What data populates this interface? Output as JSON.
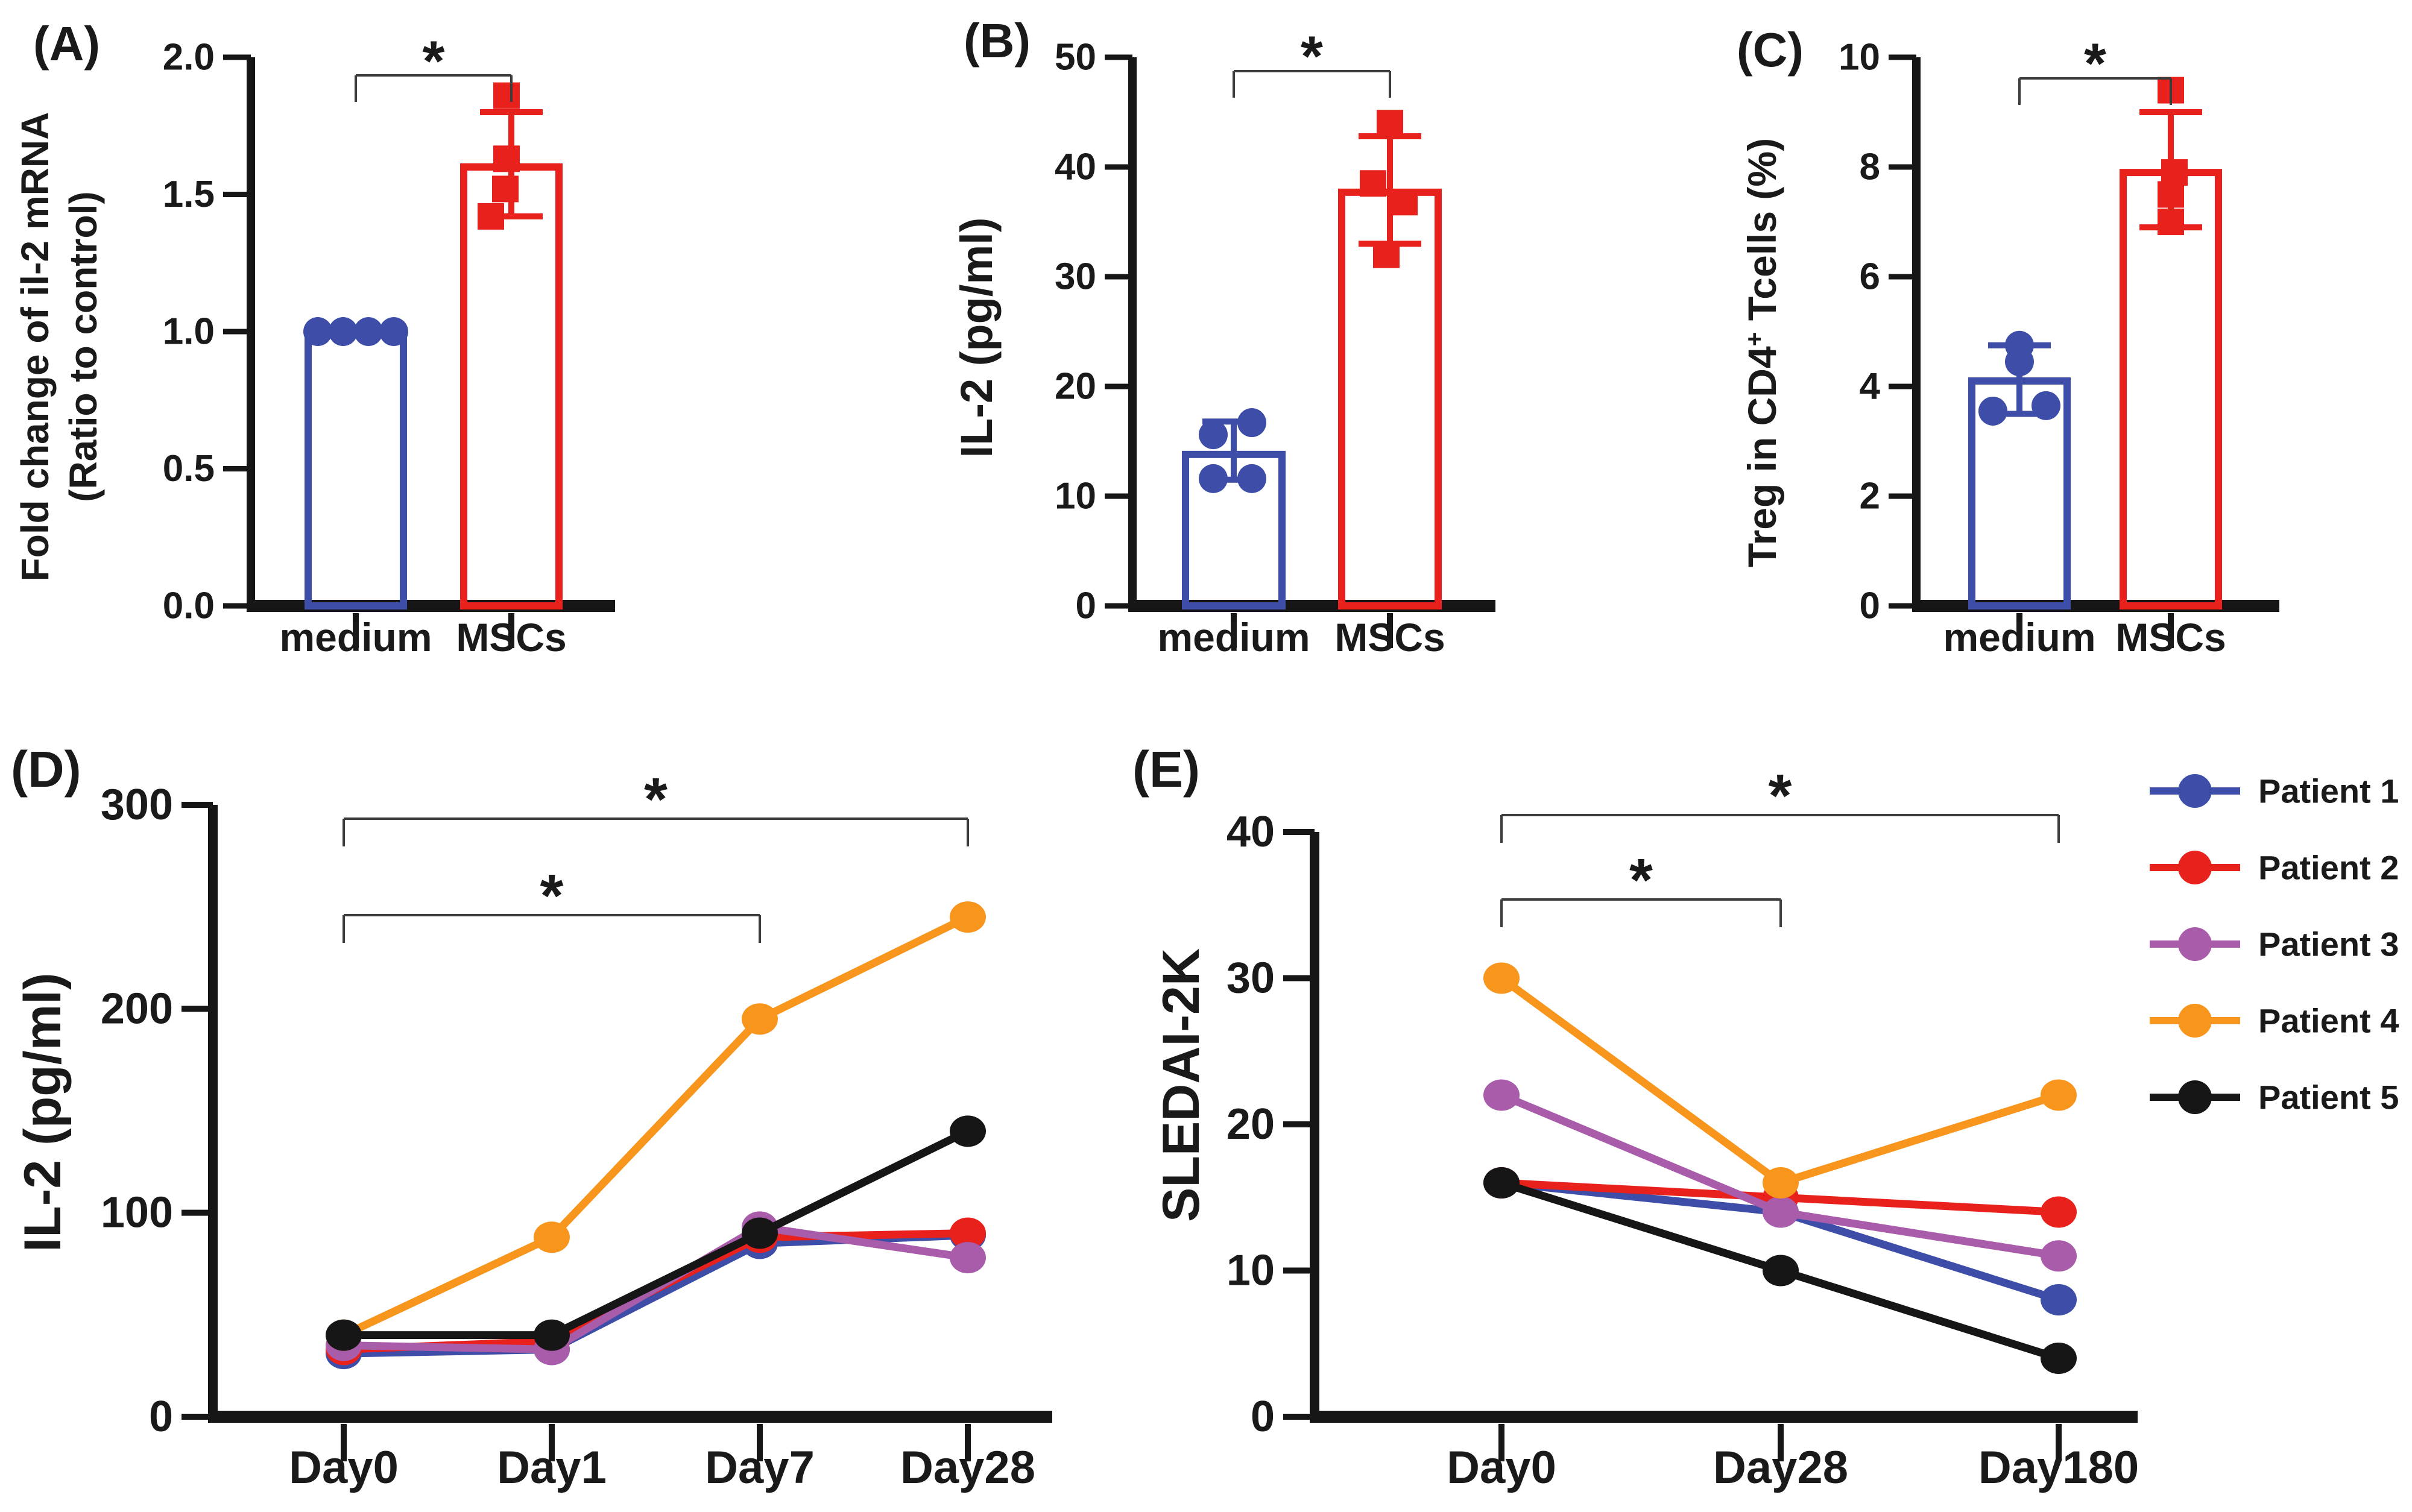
{
  "figure": {
    "background": "#ffffff"
  },
  "colors": {
    "blue": "#3D4DA8",
    "red": "#E8211D",
    "purple": "#A95CA9",
    "orange": "#F8951D",
    "black": "#161616",
    "bracket": "#3c3c3c",
    "text": "#1a1a1a"
  },
  "chart_data": [
    {
      "id": "A",
      "panel_label": "(A)",
      "type": "bar",
      "ylabel_lines": [
        "Fold change of il-2 mRNA",
        "(Ratio to control)"
      ],
      "ylim": [
        0,
        2
      ],
      "yticks": [
        {
          "v": 0,
          "t": "0.0"
        },
        {
          "v": 0.5,
          "t": "0.5"
        },
        {
          "v": 1.0,
          "t": "1.0"
        },
        {
          "v": 1.5,
          "t": "1.5"
        },
        {
          "v": 2.0,
          "t": "2.0"
        }
      ],
      "categories": [
        "medium",
        "MSCs"
      ],
      "groups": [
        {
          "category": "medium",
          "color_key": "blue",
          "marker": "circle",
          "mean": 1.0,
          "err": null,
          "points": [
            {
              "v": 1.0,
              "dx": -63
            },
            {
              "v": 1.0,
              "dx": -21
            },
            {
              "v": 1.0,
              "dx": 21
            },
            {
              "v": 1.0,
              "dx": 63
            }
          ]
        },
        {
          "category": "MSCs",
          "color_key": "red",
          "marker": "square",
          "mean": 1.6,
          "err": [
            1.42,
            1.8
          ],
          "points": [
            {
              "v": 1.86,
              "dx": -8
            },
            {
              "v": 1.63,
              "dx": -8
            },
            {
              "v": 1.52,
              "dx": -10
            },
            {
              "v": 1.42,
              "dx": -34
            }
          ]
        }
      ],
      "sig": {
        "label": "*"
      }
    },
    {
      "id": "B",
      "panel_label": "(B)",
      "type": "bar",
      "ylabel_lines": [
        "IL-2 (pg/ml)"
      ],
      "ylim": [
        0,
        50
      ],
      "yticks": [
        {
          "v": 0,
          "t": "0"
        },
        {
          "v": 10,
          "t": "10"
        },
        {
          "v": 20,
          "t": "20"
        },
        {
          "v": 30,
          "t": "30"
        },
        {
          "v": 40,
          "t": "40"
        },
        {
          "v": 50,
          "t": "50"
        }
      ],
      "categories": [
        "medium",
        "MSCs"
      ],
      "groups": [
        {
          "category": "medium",
          "color_key": "blue",
          "marker": "circle",
          "mean": 13.8,
          "err": [
            11.5,
            16.8
          ],
          "points": [
            {
              "v": 16.7,
              "dx": 30
            },
            {
              "v": 15.6,
              "dx": -34
            },
            {
              "v": 11.6,
              "dx": -34
            },
            {
              "v": 11.6,
              "dx": 30
            }
          ]
        },
        {
          "category": "MSCs",
          "color_key": "red",
          "marker": "square",
          "mean": 37.7,
          "err": [
            33.0,
            42.8
          ],
          "points": [
            {
              "v": 44.0,
              "dx": 0
            },
            {
              "v": 38.5,
              "dx": -28
            },
            {
              "v": 36.8,
              "dx": 24
            },
            {
              "v": 32.0,
              "dx": -6
            }
          ]
        }
      ],
      "sig": {
        "label": "*"
      }
    },
    {
      "id": "C",
      "panel_label": "(C)",
      "type": "bar",
      "ylabel_parts": [
        {
          "t": "Treg in CD4"
        },
        {
          "t": "+",
          "sup": true
        },
        {
          "t": " Tcells (%)"
        }
      ],
      "ylabel_lines": [
        "Treg in CD4+ Tcells (%)"
      ],
      "ylim": [
        0,
        10
      ],
      "yticks": [
        {
          "v": 0,
          "t": "0"
        },
        {
          "v": 2,
          "t": "2"
        },
        {
          "v": 4,
          "t": "4"
        },
        {
          "v": 6,
          "t": "6"
        },
        {
          "v": 8,
          "t": "8"
        },
        {
          "v": 10,
          "t": "10"
        }
      ],
      "categories": [
        "medium",
        "MSCs"
      ],
      "groups": [
        {
          "category": "medium",
          "color_key": "blue",
          "marker": "circle",
          "mean": 4.1,
          "err": [
            3.5,
            4.75
          ],
          "points": [
            {
              "v": 4.75,
              "dx": 0
            },
            {
              "v": 4.45,
              "dx": 0
            },
            {
              "v": 3.55,
              "dx": -44
            },
            {
              "v": 3.65,
              "dx": 44
            }
          ]
        },
        {
          "category": "MSCs",
          "color_key": "red",
          "marker": "square",
          "mean": 7.9,
          "err": [
            6.9,
            9.0
          ],
          "points": [
            {
              "v": 9.4,
              "dx": 0
            },
            {
              "v": 7.9,
              "dx": 6
            },
            {
              "v": 7.5,
              "dx": 0
            },
            {
              "v": 7.0,
              "dx": 0
            }
          ]
        }
      ],
      "sig": {
        "label": "*"
      }
    },
    {
      "id": "D",
      "panel_label": "(D)",
      "type": "line",
      "ylabel_lines": [
        "IL-2 (pg/ml)"
      ],
      "ylim": [
        0,
        300
      ],
      "yticks": [
        {
          "v": 0,
          "t": "0"
        },
        {
          "v": 100,
          "t": "100"
        },
        {
          "v": 200,
          "t": "200"
        },
        {
          "v": 300,
          "t": "300"
        }
      ],
      "categories": [
        "Day0",
        "Day1",
        "Day7",
        "Day28"
      ],
      "series": [
        {
          "name": "Patient 1",
          "color_key": "blue",
          "values": [
            31,
            33,
            85,
            89
          ]
        },
        {
          "name": "Patient 2",
          "color_key": "red",
          "values": [
            33,
            37,
            88,
            90
          ]
        },
        {
          "name": "Patient 3",
          "color_key": "purple",
          "values": [
            35,
            33,
            93,
            78
          ]
        },
        {
          "name": "Patient 4",
          "color_key": "orange",
          "values": [
            40,
            88,
            195,
            245
          ]
        },
        {
          "name": "Patient 5",
          "color_key": "black",
          "values": [
            40,
            40,
            90,
            140
          ]
        }
      ],
      "sig_brackets": [
        {
          "label": "*",
          "from": 0,
          "to": 2
        },
        {
          "label": "*",
          "from": 0,
          "to": 3
        }
      ]
    },
    {
      "id": "E",
      "panel_label": "(E)",
      "type": "line",
      "ylabel_lines": [
        "SLEDAI-2K"
      ],
      "ylim": [
        0,
        40
      ],
      "yticks": [
        {
          "v": 0,
          "t": "0"
        },
        {
          "v": 10,
          "t": "10"
        },
        {
          "v": 20,
          "t": "20"
        },
        {
          "v": 30,
          "t": "30"
        },
        {
          "v": 40,
          "t": "40"
        }
      ],
      "categories": [
        "Day0",
        "Day28",
        "Day180"
      ],
      "series": [
        {
          "name": "Patient 1",
          "color_key": "blue",
          "values": [
            16,
            14,
            8
          ]
        },
        {
          "name": "Patient 2",
          "color_key": "red",
          "values": [
            16,
            15,
            14
          ]
        },
        {
          "name": "Patient 3",
          "color_key": "purple",
          "values": [
            22,
            14,
            11
          ]
        },
        {
          "name": "Patient 4",
          "color_key": "orange",
          "values": [
            30,
            16,
            22
          ]
        },
        {
          "name": "Patient 5",
          "color_key": "black",
          "values": [
            16,
            10,
            4
          ]
        }
      ],
      "sig_brackets": [
        {
          "label": "*",
          "from": 0,
          "to": 1
        },
        {
          "label": "*",
          "from": 0,
          "to": 2
        }
      ]
    }
  ],
  "legend": {
    "items": [
      {
        "label": "Patient 1",
        "color_key": "blue"
      },
      {
        "label": "Patient 2",
        "color_key": "red"
      },
      {
        "label": "Patient 3",
        "color_key": "purple"
      },
      {
        "label": "Patient 4",
        "color_key": "orange"
      },
      {
        "label": "Patient 5",
        "color_key": "black"
      }
    ]
  }
}
